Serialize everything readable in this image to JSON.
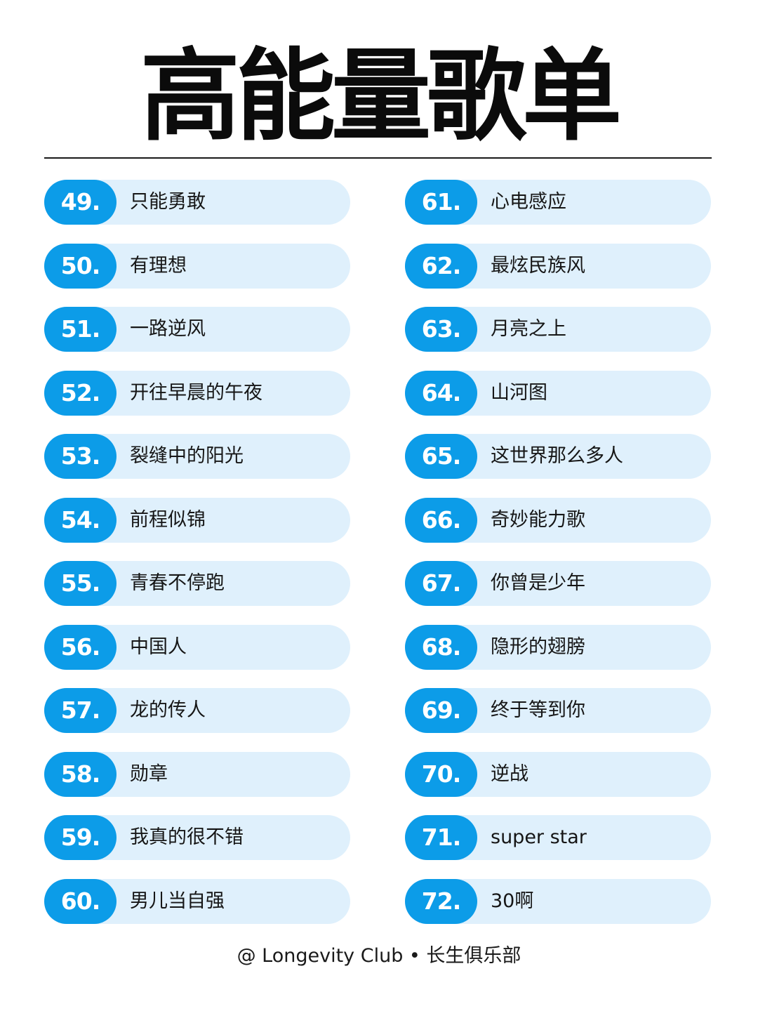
{
  "header": {
    "title": "高能量歌单"
  },
  "columns": {
    "left": [
      {
        "number": "49.",
        "song": "只能勇敢"
      },
      {
        "number": "50.",
        "song": "有理想"
      },
      {
        "number": "51.",
        "song": "一路逆风"
      },
      {
        "number": "52.",
        "song": "开往早晨的午夜"
      },
      {
        "number": "53.",
        "song": "裂缝中的阳光"
      },
      {
        "number": "54.",
        "song": "前程似锦"
      },
      {
        "number": "55.",
        "song": "青春不停跑"
      },
      {
        "number": "56.",
        "song": "中国人"
      },
      {
        "number": "57.",
        "song": "龙的传人"
      },
      {
        "number": "58.",
        "song": "勋章"
      },
      {
        "number": "59.",
        "song": "我真的很不错"
      },
      {
        "number": "60.",
        "song": "男儿当自强"
      }
    ],
    "right": [
      {
        "number": "61.",
        "song": "心电感应"
      },
      {
        "number": "62.",
        "song": "最炫民族风"
      },
      {
        "number": "63.",
        "song": "月亮之上"
      },
      {
        "number": "64.",
        "song": "山河图"
      },
      {
        "number": "65.",
        "song": "这世界那么多人"
      },
      {
        "number": "66.",
        "song": "奇妙能力歌"
      },
      {
        "number": "67.",
        "song": "你曾是少年"
      },
      {
        "number": "68.",
        "song": "隐形的翅膀"
      },
      {
        "number": "69.",
        "song": "终于等到你"
      },
      {
        "number": "70.",
        "song": "逆战"
      },
      {
        "number": "71.",
        "song": "super star"
      },
      {
        "number": "72.",
        "song": "30啊"
      }
    ]
  },
  "footer": {
    "credit": "@ Longevity Club • 长生俱乐部"
  },
  "colors": {
    "accent": "#0c9ce8",
    "pill_background": "#dff0fc",
    "text": "#161616"
  }
}
